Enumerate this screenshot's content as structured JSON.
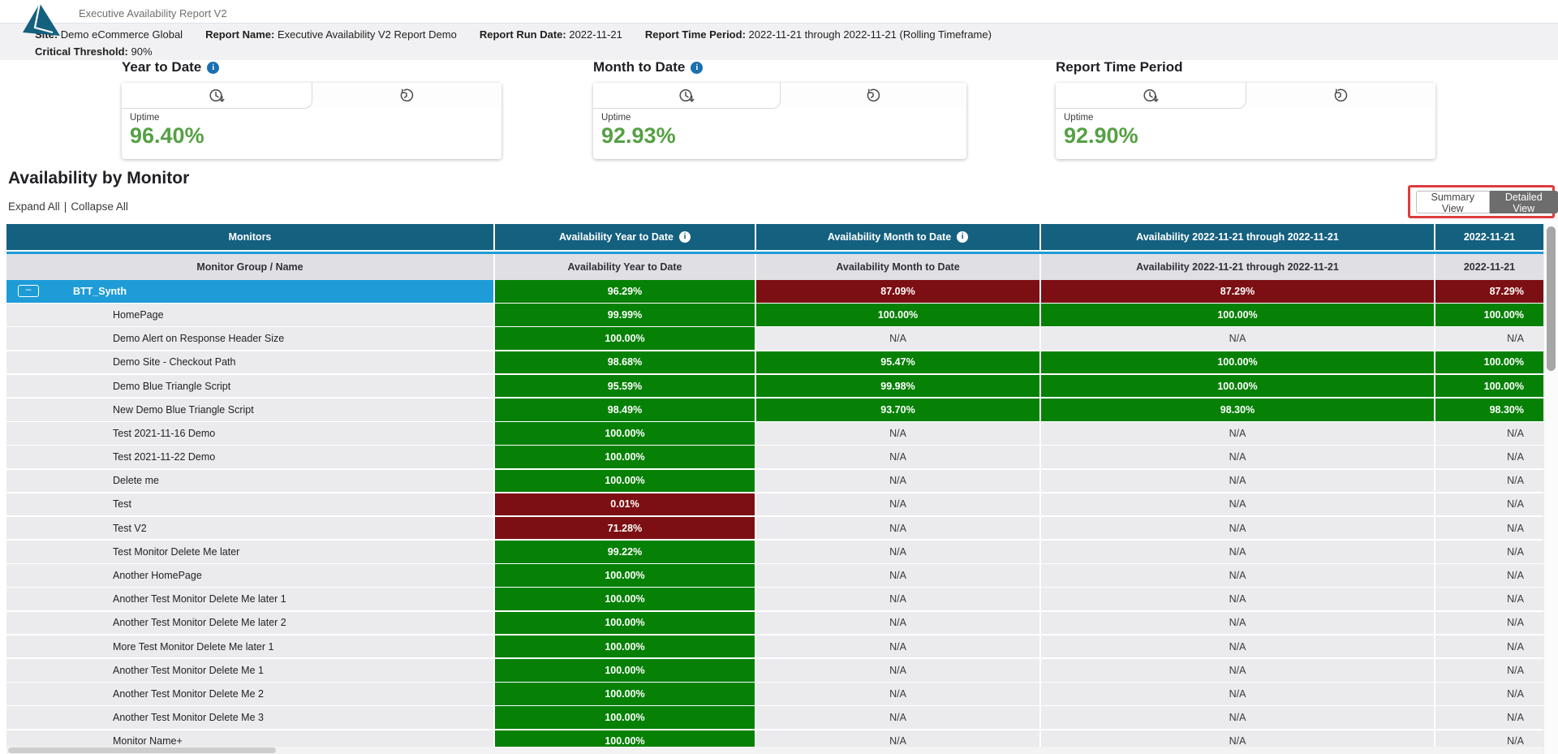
{
  "app": {
    "title": "Executive Availability Report V2"
  },
  "info_bar": {
    "items": [
      {
        "label": "Site:",
        "value": "Demo eCommerce Global"
      },
      {
        "label": "Report Name:",
        "value": "Executive Availability V2 Report Demo"
      },
      {
        "label": "Report Run Date:",
        "value": "2022-11-21"
      },
      {
        "label": "Report Time Period:",
        "value": "2022-11-21 through 2022-11-21 (Rolling Timeframe)"
      }
    ],
    "threshold": {
      "label": "Critical Threshold:",
      "value": "90%"
    }
  },
  "kpi_cards": [
    {
      "title": "Year to Date",
      "has_info": true,
      "metric_label": "Uptime",
      "value": "96.40%"
    },
    {
      "title": "Month to Date",
      "has_info": true,
      "metric_label": "Uptime",
      "value": "92.93%"
    },
    {
      "title": "Report Time Period",
      "has_info": false,
      "metric_label": "Uptime",
      "value": "92.90%"
    }
  ],
  "section": {
    "title": "Availability by Monitor",
    "expand_all": "Expand All",
    "divider": "|",
    "collapse_all": "Collapse All",
    "view_toggle": {
      "summary": "Summary View",
      "detailed": "Detailed View",
      "active": "Detailed View"
    }
  },
  "table": {
    "columns": [
      {
        "header": "Monitors",
        "subheader": "Monitor Group / Name",
        "has_info": false
      },
      {
        "header": "Availability Year to Date",
        "subheader": "Availability Year to Date",
        "has_info": true
      },
      {
        "header": "Availability Month to Date",
        "subheader": "Availability Month to Date",
        "has_info": true
      },
      {
        "header": "Availability 2022-11-21 through 2022-11-21",
        "subheader": "Availability 2022-11-21 through 2022-11-21",
        "has_info": false
      },
      {
        "header": "2022-11-21",
        "subheader": "2022-11-21",
        "has_info": false
      }
    ],
    "rows": [
      {
        "name": "BTT_Synth",
        "type": "group",
        "selected": true,
        "values": [
          {
            "text": "96.29%",
            "status": "good"
          },
          {
            "text": "87.09%",
            "status": "bad"
          },
          {
            "text": "87.29%",
            "status": "bad"
          },
          {
            "text": "87.29%",
            "status": "bad"
          }
        ]
      },
      {
        "name": "HomePage",
        "type": "monitor",
        "selected": false,
        "values": [
          {
            "text": "99.99%",
            "status": "good"
          },
          {
            "text": "100.00%",
            "status": "good"
          },
          {
            "text": "100.00%",
            "status": "good"
          },
          {
            "text": "100.00%",
            "status": "good"
          }
        ]
      },
      {
        "name": "Demo Alert on Response Header Size",
        "type": "monitor",
        "selected": false,
        "values": [
          {
            "text": "100.00%",
            "status": "good"
          },
          {
            "text": "N/A",
            "status": "na"
          },
          {
            "text": "N/A",
            "status": "na"
          },
          {
            "text": "N/A",
            "status": "na"
          }
        ]
      },
      {
        "name": "Demo Site - Checkout Path",
        "type": "monitor",
        "selected": false,
        "values": [
          {
            "text": "98.68%",
            "status": "good"
          },
          {
            "text": "95.47%",
            "status": "good"
          },
          {
            "text": "100.00%",
            "status": "good"
          },
          {
            "text": "100.00%",
            "status": "good"
          }
        ]
      },
      {
        "name": "Demo Blue Triangle Script",
        "type": "monitor",
        "selected": false,
        "values": [
          {
            "text": "95.59%",
            "status": "good"
          },
          {
            "text": "99.98%",
            "status": "good"
          },
          {
            "text": "100.00%",
            "status": "good"
          },
          {
            "text": "100.00%",
            "status": "good"
          }
        ]
      },
      {
        "name": "New Demo Blue Triangle Script",
        "type": "monitor",
        "selected": false,
        "values": [
          {
            "text": "98.49%",
            "status": "good"
          },
          {
            "text": "93.70%",
            "status": "good"
          },
          {
            "text": "98.30%",
            "status": "good"
          },
          {
            "text": "98.30%",
            "status": "good"
          }
        ]
      },
      {
        "name": "Test 2021-11-16 Demo",
        "type": "monitor",
        "selected": false,
        "values": [
          {
            "text": "100.00%",
            "status": "good"
          },
          {
            "text": "N/A",
            "status": "na"
          },
          {
            "text": "N/A",
            "status": "na"
          },
          {
            "text": "N/A",
            "status": "na"
          }
        ]
      },
      {
        "name": "Test 2021-11-22 Demo",
        "type": "monitor",
        "selected": false,
        "values": [
          {
            "text": "100.00%",
            "status": "good"
          },
          {
            "text": "N/A",
            "status": "na"
          },
          {
            "text": "N/A",
            "status": "na"
          },
          {
            "text": "N/A",
            "status": "na"
          }
        ]
      },
      {
        "name": "Delete me",
        "type": "monitor",
        "selected": false,
        "values": [
          {
            "text": "100.00%",
            "status": "good"
          },
          {
            "text": "N/A",
            "status": "na"
          },
          {
            "text": "N/A",
            "status": "na"
          },
          {
            "text": "N/A",
            "status": "na"
          }
        ]
      },
      {
        "name": "Test",
        "type": "monitor",
        "selected": false,
        "values": [
          {
            "text": "0.01%",
            "status": "bad"
          },
          {
            "text": "N/A",
            "status": "na"
          },
          {
            "text": "N/A",
            "status": "na"
          },
          {
            "text": "N/A",
            "status": "na"
          }
        ]
      },
      {
        "name": "Test V2",
        "type": "monitor",
        "selected": false,
        "values": [
          {
            "text": "71.28%",
            "status": "bad"
          },
          {
            "text": "N/A",
            "status": "na"
          },
          {
            "text": "N/A",
            "status": "na"
          },
          {
            "text": "N/A",
            "status": "na"
          }
        ]
      },
      {
        "name": "Test Monitor Delete Me later",
        "type": "monitor",
        "selected": false,
        "values": [
          {
            "text": "99.22%",
            "status": "good"
          },
          {
            "text": "N/A",
            "status": "na"
          },
          {
            "text": "N/A",
            "status": "na"
          },
          {
            "text": "N/A",
            "status": "na"
          }
        ]
      },
      {
        "name": "Another HomePage",
        "type": "monitor",
        "selected": false,
        "values": [
          {
            "text": "100.00%",
            "status": "good"
          },
          {
            "text": "N/A",
            "status": "na"
          },
          {
            "text": "N/A",
            "status": "na"
          },
          {
            "text": "N/A",
            "status": "na"
          }
        ]
      },
      {
        "name": "Another Test Monitor Delete Me later 1",
        "type": "monitor",
        "selected": false,
        "values": [
          {
            "text": "100.00%",
            "status": "good"
          },
          {
            "text": "N/A",
            "status": "na"
          },
          {
            "text": "N/A",
            "status": "na"
          },
          {
            "text": "N/A",
            "status": "na"
          }
        ]
      },
      {
        "name": "Another Test Monitor Delete Me later 2",
        "type": "monitor",
        "selected": false,
        "values": [
          {
            "text": "100.00%",
            "status": "good"
          },
          {
            "text": "N/A",
            "status": "na"
          },
          {
            "text": "N/A",
            "status": "na"
          },
          {
            "text": "N/A",
            "status": "na"
          }
        ]
      },
      {
        "name": "More Test Monitor Delete Me later 1",
        "type": "monitor",
        "selected": false,
        "values": [
          {
            "text": "100.00%",
            "status": "good"
          },
          {
            "text": "N/A",
            "status": "na"
          },
          {
            "text": "N/A",
            "status": "na"
          },
          {
            "text": "N/A",
            "status": "na"
          }
        ]
      },
      {
        "name": "Another Test Monitor Delete Me 1",
        "type": "monitor",
        "selected": false,
        "values": [
          {
            "text": "100.00%",
            "status": "good"
          },
          {
            "text": "N/A",
            "status": "na"
          },
          {
            "text": "N/A",
            "status": "na"
          },
          {
            "text": "N/A",
            "status": "na"
          }
        ]
      },
      {
        "name": "Another Test Monitor Delete Me 2",
        "type": "monitor",
        "selected": false,
        "values": [
          {
            "text": "100.00%",
            "status": "good"
          },
          {
            "text": "N/A",
            "status": "na"
          },
          {
            "text": "N/A",
            "status": "na"
          },
          {
            "text": "N/A",
            "status": "na"
          }
        ]
      },
      {
        "name": "Another Test Monitor Delete Me 3",
        "type": "monitor",
        "selected": false,
        "values": [
          {
            "text": "100.00%",
            "status": "good"
          },
          {
            "text": "N/A",
            "status": "na"
          },
          {
            "text": "N/A",
            "status": "na"
          },
          {
            "text": "N/A",
            "status": "na"
          }
        ]
      },
      {
        "name": "Monitor Name+",
        "type": "monitor",
        "selected": false,
        "values": [
          {
            "text": "100.00%",
            "status": "good"
          },
          {
            "text": "N/A",
            "status": "na"
          },
          {
            "text": "N/A",
            "status": "na"
          },
          {
            "text": "N/A",
            "status": "na"
          }
        ]
      }
    ]
  },
  "colors": {
    "header_teal": "#14607f",
    "selected_blue": "#1e9cd7",
    "good_green": "#068106",
    "critical_red": "#7c0f13",
    "na_grey": "#ebebee",
    "kpi_value_green": "#55a044",
    "annotation_red": "#dd3c3c"
  }
}
